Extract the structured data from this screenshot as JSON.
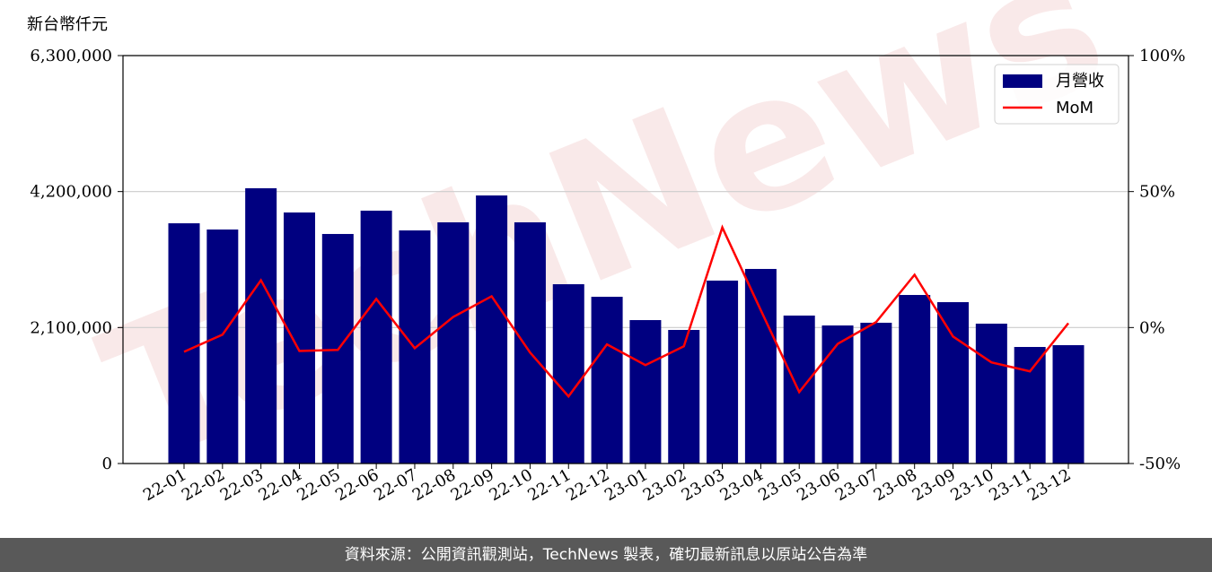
{
  "chart_data": {
    "type": "bar_line",
    "y_label": "新台幣仟元",
    "watermark": "TechNews",
    "categories": [
      "22-01",
      "22-02",
      "22-03",
      "22-04",
      "22-05",
      "22-06",
      "22-07",
      "22-08",
      "22-09",
      "22-10",
      "22-11",
      "22-12",
      "23-01",
      "23-02",
      "23-03",
      "23-04",
      "23-05",
      "23-06",
      "23-07",
      "23-08",
      "23-09",
      "23-10",
      "23-11",
      "23-12"
    ],
    "series": [
      {
        "name": "月營收",
        "color": "#000080",
        "type": "bar",
        "values": [
          3710000,
          3614000,
          4251000,
          3877000,
          3545000,
          3905000,
          3600000,
          3725000,
          4140000,
          3725000,
          2769000,
          2575000,
          2215000,
          2063000,
          2825000,
          3005000,
          2285000,
          2132000,
          2174000,
          2603000,
          2492000,
          2160000,
          1800000,
          1828000
        ]
      },
      {
        "name": "MoM",
        "color": "#ff0000",
        "type": "line",
        "axis": "y2",
        "values": [
          -8.9,
          -2.6,
          17.4,
          -8.6,
          -8.2,
          10.5,
          -7.6,
          3.9,
          11.5,
          -9.2,
          -25.3,
          -6.2,
          -13.8,
          -6.9,
          36.8,
          6.4,
          -23.7,
          -6.0,
          2.0,
          19.4,
          -3.3,
          -12.8,
          -16.1,
          1.6
        ]
      }
    ],
    "ylim": [
      0,
      6300000
    ],
    "yticks": [
      0,
      {
        "value": 2100000,
        "label": "2,100,000"
      },
      {
        "value": 4200000,
        "label": "4,200,000"
      },
      {
        "value": 6300000,
        "label": "6,300,000"
      }
    ],
    "y2lim": [
      -50,
      100
    ],
    "y2ticks": [
      {
        "value": -50,
        "label": "-50%"
      },
      {
        "value": 0,
        "label": "0%"
      },
      {
        "value": 50,
        "label": "50%"
      },
      {
        "value": 100,
        "label": "100%"
      }
    ],
    "grid": true,
    "legend": "upper right"
  },
  "footer": "資料來源：公開資訊觀測站，TechNews 製表，確切最新訊息以原站公告為準"
}
